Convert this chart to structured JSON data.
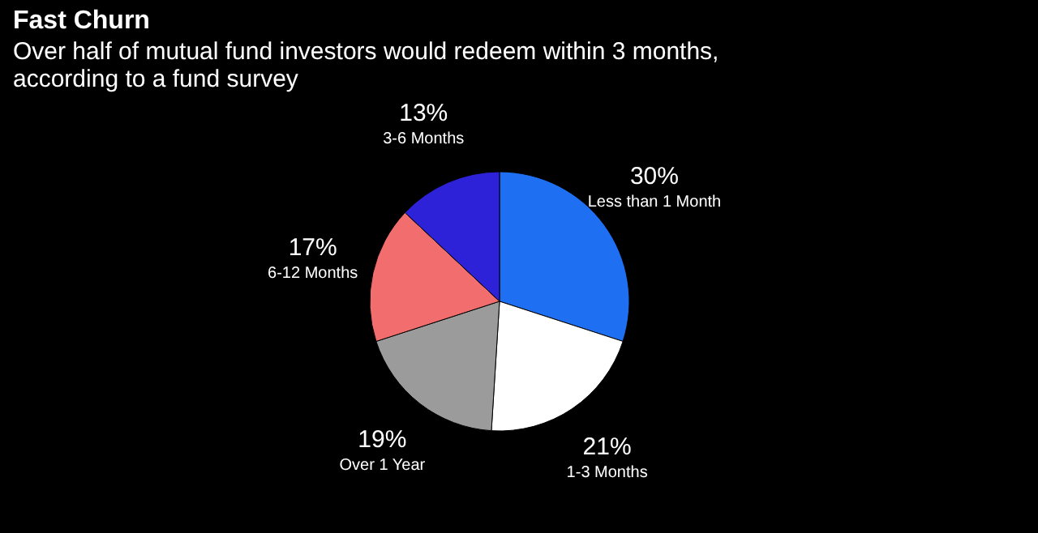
{
  "chart_data": {
    "type": "pie",
    "title": "Fast Churn",
    "subtitle": "Over half of mutual fund investors would redeem within 3 months, according to a fund survey",
    "categories": [
      "Less than 1 Month",
      "1-3 Months",
      "Over 1 Year",
      "6-12 Months",
      "3-6 Months"
    ],
    "values": [
      30,
      21,
      19,
      17,
      13
    ],
    "colors": [
      "#1f6ff2",
      "#ffffff",
      "#9b9b9b",
      "#f26d6d",
      "#2d22d8"
    ],
    "value_labels": [
      "30%",
      "21%",
      "19%",
      "17%",
      "13%"
    ],
    "legend": false
  }
}
